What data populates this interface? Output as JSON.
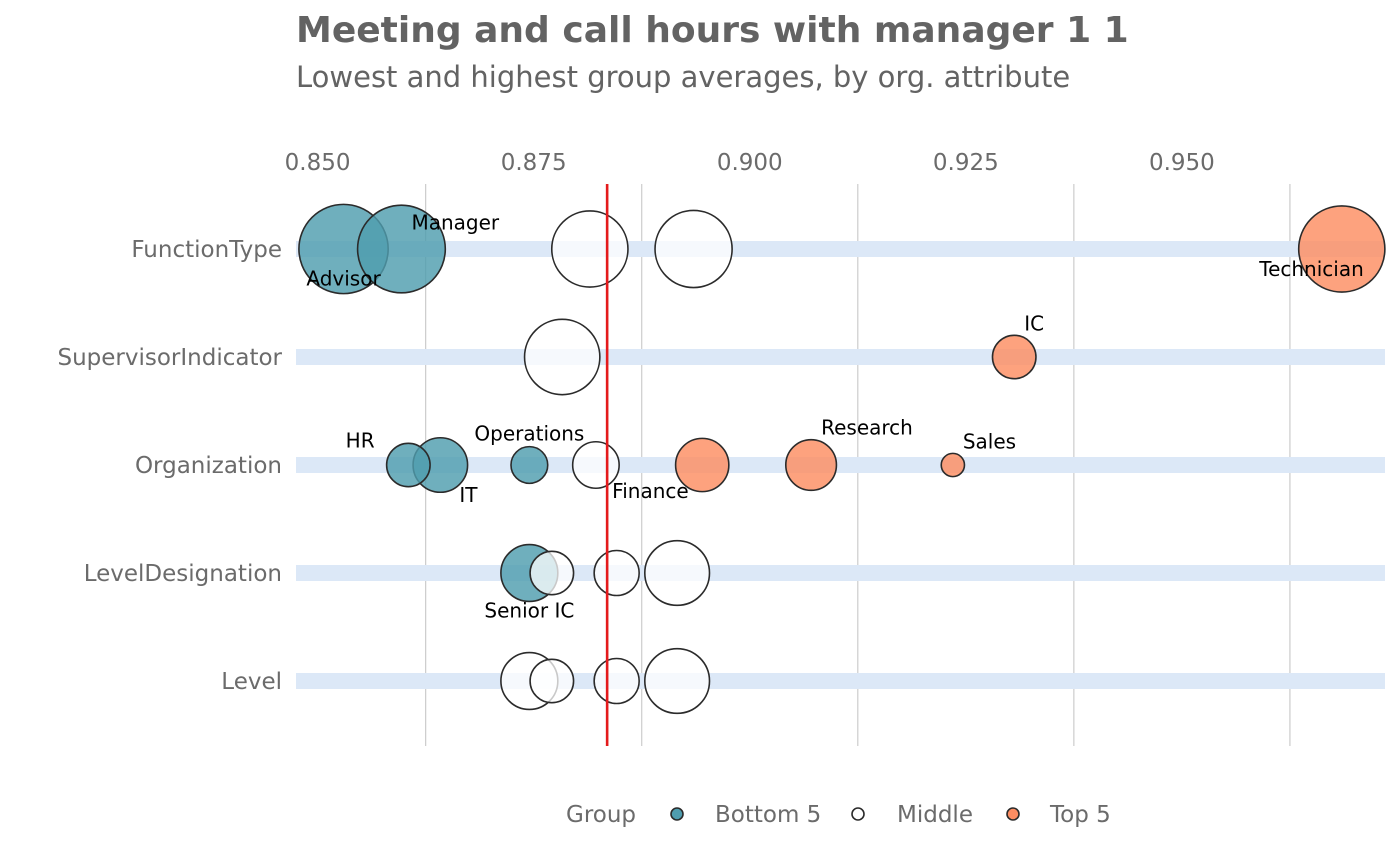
{
  "chart_data": {
    "type": "scatter",
    "title": "Meeting and call hours with manager 1 1",
    "subtitle": "Lowest and highest group averages, by org. attribute",
    "xlim": [
      0.8475,
      0.9735
    ],
    "x_ticks": [
      0.85,
      0.875,
      0.9,
      0.925,
      0.95
    ],
    "x_tick_labels": [
      "0.850",
      "0.875",
      "0.900",
      "0.925",
      "0.950"
    ],
    "reference_line": 0.8835,
    "categories": [
      "FunctionType",
      "SupervisorIndicator",
      "Organization",
      "LevelDesignation",
      "Level"
    ],
    "legend": {
      "title": "Group",
      "placement": "bottom",
      "entries": [
        {
          "label": "Bottom 5",
          "color": "#4f9daf"
        },
        {
          "label": "Middle",
          "color": "#ffffff"
        },
        {
          "label": "Top 5",
          "color": "#fc8d62"
        }
      ]
    },
    "colors": {
      "Bottom 5": "#4f9daf",
      "Middle": "#ffffff",
      "Top 5": "#fc8d62",
      "track": "#dce8f7",
      "reference": "#e41a1c",
      "gridline": "#cccccc"
    },
    "points": [
      {
        "attribute": "FunctionType",
        "x": 0.853,
        "size": 0.59,
        "group": "Bottom 5",
        "label": "Advisor",
        "label_pos": "below"
      },
      {
        "attribute": "FunctionType",
        "x": 0.8597,
        "size": 0.57,
        "group": "Bottom 5",
        "label": "Manager",
        "label_pos": "above-right"
      },
      {
        "attribute": "FunctionType",
        "x": 0.8815,
        "size": 0.43,
        "group": "Middle",
        "label": "",
        "label_pos": ""
      },
      {
        "attribute": "FunctionType",
        "x": 0.8935,
        "size": 0.44,
        "group": "Middle",
        "label": "",
        "label_pos": ""
      },
      {
        "attribute": "FunctionType",
        "x": 0.9685,
        "size": 0.55,
        "group": "Top 5",
        "label": "Technician",
        "label_pos": "below-left"
      },
      {
        "attribute": "SupervisorIndicator",
        "x": 0.8783,
        "size": 0.42,
        "group": "Middle",
        "label": "",
        "label_pos": ""
      },
      {
        "attribute": "SupervisorIndicator",
        "x": 0.9306,
        "size": 0.14,
        "group": "Top 5",
        "label": "IC",
        "label_pos": "above-right"
      },
      {
        "attribute": "Organization",
        "x": 0.8605,
        "size": 0.14,
        "group": "Bottom 5",
        "label": "HR",
        "label_pos": "above-left"
      },
      {
        "attribute": "Organization",
        "x": 0.8642,
        "size": 0.22,
        "group": "Bottom 5",
        "label": "IT",
        "label_pos": "below-right"
      },
      {
        "attribute": "Organization",
        "x": 0.8745,
        "size": 0.1,
        "group": "Bottom 5",
        "label": "Operations",
        "label_pos": "above"
      },
      {
        "attribute": "Organization",
        "x": 0.8822,
        "size": 0.16,
        "group": "Middle",
        "label": "Finance",
        "label_pos": "below-right"
      },
      {
        "attribute": "Organization",
        "x": 0.8945,
        "size": 0.21,
        "group": "Top 5",
        "label": "",
        "label_pos": ""
      },
      {
        "attribute": "Organization",
        "x": 0.9071,
        "size": 0.19,
        "group": "Top 5",
        "label": "Research",
        "label_pos": "above-right"
      },
      {
        "attribute": "Organization",
        "x": 0.9235,
        "size": 0.04,
        "group": "Top 5",
        "label": "Sales",
        "label_pos": "above-right"
      },
      {
        "attribute": "LevelDesignation",
        "x": 0.8745,
        "size": 0.24,
        "group": "Bottom 5",
        "label": "Senior IC",
        "label_pos": "below"
      },
      {
        "attribute": "LevelDesignation",
        "x": 0.8771,
        "size": 0.14,
        "group": "Middle",
        "label": "",
        "label_pos": ""
      },
      {
        "attribute": "LevelDesignation",
        "x": 0.8846,
        "size": 0.15,
        "group": "Middle",
        "label": "",
        "label_pos": ""
      },
      {
        "attribute": "LevelDesignation",
        "x": 0.8916,
        "size": 0.31,
        "group": "Middle",
        "label": "",
        "label_pos": ""
      },
      {
        "attribute": "Level",
        "x": 0.8745,
        "size": 0.24,
        "group": "Middle",
        "label": "",
        "label_pos": ""
      },
      {
        "attribute": "Level",
        "x": 0.8771,
        "size": 0.14,
        "group": "Middle",
        "label": "",
        "label_pos": ""
      },
      {
        "attribute": "Level",
        "x": 0.8846,
        "size": 0.15,
        "group": "Middle",
        "label": "",
        "label_pos": ""
      },
      {
        "attribute": "Level",
        "x": 0.8916,
        "size": 0.31,
        "group": "Middle",
        "label": "",
        "label_pos": ""
      }
    ]
  }
}
